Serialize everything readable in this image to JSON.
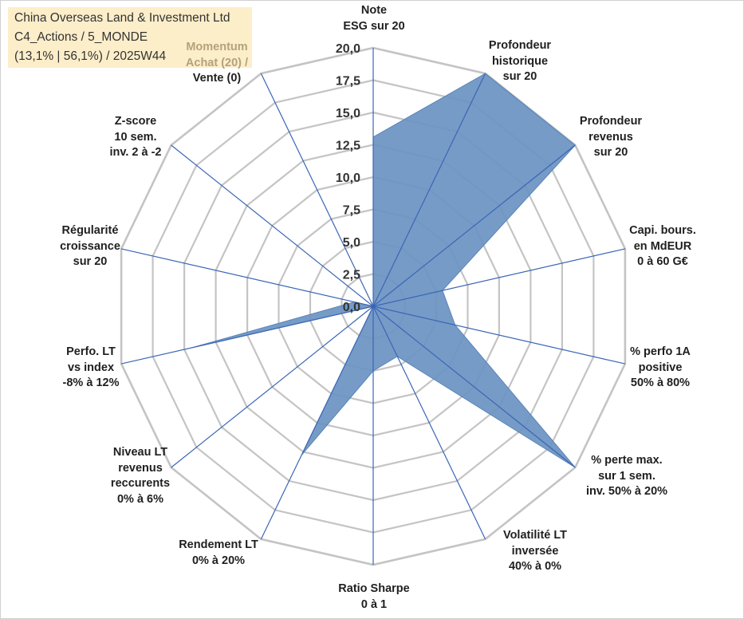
{
  "title_block": {
    "lines": [
      "China Overseas Land & Investment Ltd",
      "C4_Actions / 5_MONDE",
      "(13,1% | 56,1%) / 2025W44"
    ]
  },
  "chart_data": {
    "type": "radar",
    "radial_range": [
      0,
      20
    ],
    "radial_ticks": [
      "0,0",
      "2,5",
      "5,0",
      "7,5",
      "10,0",
      "12,5",
      "15,0",
      "17,5",
      "20,0"
    ],
    "radial_tick_values": [
      0,
      2.5,
      5,
      7.5,
      10,
      12.5,
      15,
      17.5,
      20
    ],
    "axes": [
      {
        "lines": [
          "Note",
          "ESG sur 20"
        ],
        "value": 13.1
      },
      {
        "lines": [
          "Profondeur",
          "historique",
          "sur 20"
        ],
        "value": 20
      },
      {
        "lines": [
          "Profondeur",
          "revenus",
          "sur 20"
        ],
        "value": 20
      },
      {
        "lines": [
          "Capi. bours.",
          "en MdEUR",
          "0 à 60 G€"
        ],
        "value": 5.5
      },
      {
        "lines": [
          "% perfo 1A",
          "positive",
          "50% à 80%"
        ],
        "value": 6.5
      },
      {
        "lines": [
          "% perte max.",
          "sur 1 sem.",
          "inv. 50% à 20%"
        ],
        "value": 20
      },
      {
        "lines": [
          "Volatilité LT",
          "inversée",
          "40% à 0%"
        ],
        "value": 4.3
      },
      {
        "lines": [
          "Ratio Sharpe",
          "0 à 1"
        ],
        "value": 5.0
      },
      {
        "lines": [
          "Rendement LT",
          "0% à 20%"
        ],
        "value": 12.8
      },
      {
        "lines": [
          "Niveau LT",
          "revenus",
          "reccurents",
          "0% à 6%"
        ],
        "value": 0
      },
      {
        "lines": [
          "Perfo. LT",
          "vs index",
          "-8% à 12%"
        ],
        "value": 14.5
      },
      {
        "lines": [
          "Régularité",
          "croissance",
          "sur 20"
        ],
        "value": 1.5
      },
      {
        "lines": [
          "Z-score",
          "10 sem.",
          "inv. 2 à -2"
        ],
        "value": 0
      },
      {
        "lines": [
          "Momentum",
          "Achat (20) /",
          "Vente (0)"
        ],
        "value": 0
      }
    ],
    "series": [
      {
        "name": "China Overseas Land & Investment Ltd",
        "color": "#5a85b8"
      }
    ],
    "fill_color": "#6a92c2",
    "grid_color": "#c4c4c4",
    "axis_color": "#3b66b5"
  }
}
